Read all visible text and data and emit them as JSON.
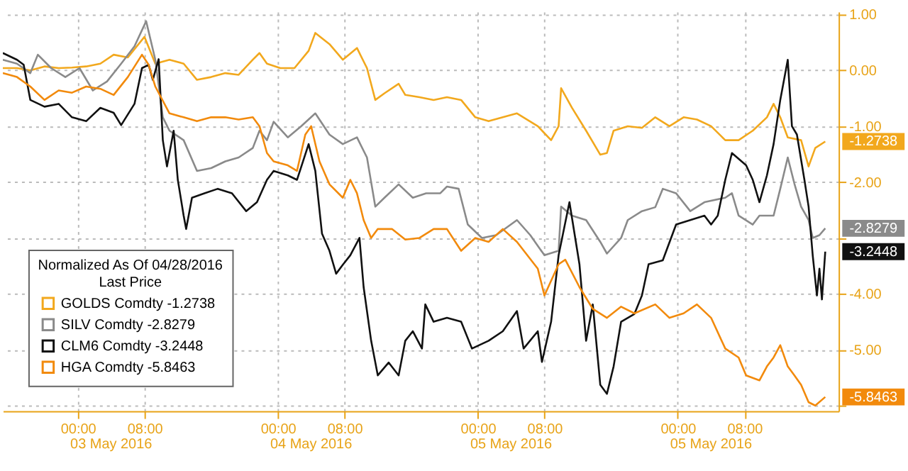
{
  "chart_data": {
    "type": "line",
    "legend_title": "Normalized As Of 04/28/2016\nLast Price",
    "legend": "bottom left",
    "grid": true,
    "line_style": "solid",
    "marker": "none",
    "xlim": [
      "2016-05-02T15:00",
      "2016-05-06T19:18"
    ],
    "xticks": [
      {
        "value": "2016-05-03T00:00",
        "label": "00:00"
      },
      {
        "value": "2016-05-03T08:00",
        "label": "08:00"
      },
      {
        "value": "2016-05-04T00:00",
        "label": "00:00"
      },
      {
        "value": "2016-05-04T08:00",
        "label": "08:00"
      },
      {
        "value": "2016-05-05T00:00",
        "label": "00:00"
      },
      {
        "value": "2016-05-05T08:00",
        "label": "08:00"
      },
      {
        "value": "2016-05-06T00:00",
        "label": "00:00"
      },
      {
        "value": "2016-05-06T08:00",
        "label": "08:00"
      }
    ],
    "ylim": [
      -6.1,
      1.05
    ],
    "yticks": [
      {
        "value": 1,
        "label": "1.00"
      },
      {
        "value": 0,
        "label": "0.00"
      },
      {
        "value": -1,
        "label": "-1.00"
      },
      {
        "value": -2,
        "label": "-2.00"
      },
      {
        "value": -3,
        "label": null
      },
      {
        "value": -4,
        "label": "-4.00"
      },
      {
        "value": -5,
        "label": "-5.00"
      },
      {
        "value": -6,
        "label": null
      }
    ],
    "series": [
      {
        "name": "GOLDS Comdty  -1.2738",
        "color": "#f2a81d",
        "x": [
          "2016-05-02T15:00",
          "2016-05-02T16:42",
          "2016-05-02T18:18",
          "2016-05-02T20:00",
          "2016-05-02T21:42",
          "2016-05-02T23:18",
          "2016-05-03T01:00",
          "2016-05-03T02:42",
          "2016-05-03T04:18",
          "2016-05-03T06:00",
          "2016-05-03T08:00",
          "2016-05-03T09:18",
          "2016-05-03T11:00",
          "2016-05-03T12:42",
          "2016-05-03T14:18",
          "2016-05-03T16:00",
          "2016-05-03T17:42",
          "2016-05-03T19:18",
          "2016-05-03T21:00",
          "2016-05-03T21:48",
          "2016-05-03T22:42",
          "2016-05-04T00:18",
          "2016-05-04T02:00",
          "2016-05-04T03:42",
          "2016-05-04T04:30",
          "2016-05-04T06:12",
          "2016-05-04T07:48",
          "2016-05-04T09:30",
          "2016-05-04T10:42",
          "2016-05-04T11:42",
          "2016-05-04T12:48",
          "2016-05-04T14:30",
          "2016-05-04T15:18",
          "2016-05-04T17:00",
          "2016-05-04T18:42",
          "2016-05-04T20:18",
          "2016-05-04T22:00",
          "2016-05-04T23:42",
          "2016-05-05T01:18",
          "2016-05-05T04:42",
          "2016-05-05T07:12",
          "2016-05-05T08:48",
          "2016-05-05T09:42",
          "2016-05-05T10:00",
          "2016-05-05T11:18",
          "2016-05-05T13:00",
          "2016-05-05T14:42",
          "2016-05-05T15:30",
          "2016-05-05T16:18",
          "2016-05-05T18:00",
          "2016-05-05T19:42",
          "2016-05-05T21:18",
          "2016-05-05T23:00",
          "2016-05-06T00:42",
          "2016-05-06T02:18",
          "2016-05-06T04:00",
          "2016-05-06T05:42",
          "2016-05-06T07:18",
          "2016-05-06T09:00",
          "2016-05-06T10:42",
          "2016-05-06T11:30",
          "2016-05-06T12:18",
          "2016-05-06T13:12",
          "2016-05-06T14:48",
          "2016-05-06T15:42",
          "2016-05-06T16:30",
          "2016-05-06T17:42"
        ],
        "values": [
          0.04,
          0.04,
          0.0,
          0.07,
          0.04,
          0.05,
          0.07,
          0.12,
          0.28,
          0.23,
          0.6,
          0.12,
          0.19,
          0.12,
          -0.17,
          -0.12,
          -0.05,
          -0.08,
          0.19,
          0.31,
          0.12,
          0.04,
          0.04,
          0.35,
          0.67,
          0.47,
          0.19,
          0.4,
          0.04,
          -0.53,
          -0.41,
          -0.24,
          -0.44,
          -0.48,
          -0.53,
          -0.48,
          -0.53,
          -0.84,
          -0.91,
          -0.77,
          -1.0,
          -1.25,
          -1.0,
          -0.32,
          -0.67,
          -1.08,
          -1.51,
          -1.48,
          -1.08,
          -1.0,
          -1.03,
          -0.84,
          -1.0,
          -0.84,
          -0.88,
          -1.0,
          -1.25,
          -1.25,
          -1.08,
          -0.84,
          -0.6,
          -0.84,
          -1.2,
          -1.25,
          -1.72,
          -1.39,
          -1.2738
        ]
      },
      {
        "name": "SILV Comdty  -2.8279",
        "color": "#8a8a8a",
        "x": [
          "2016-05-02T15:00",
          "2016-05-02T16:42",
          "2016-05-02T18:18",
          "2016-05-02T19:12",
          "2016-05-02T20:48",
          "2016-05-02T22:30",
          "2016-05-03T00:12",
          "2016-05-03T01:48",
          "2016-05-03T03:30",
          "2016-05-03T05:12",
          "2016-05-03T06:48",
          "2016-05-03T08:12",
          "2016-05-03T09:18",
          "2016-05-03T10:12",
          "2016-05-03T11:00",
          "2016-05-03T12:42",
          "2016-05-03T14:18",
          "2016-05-03T16:00",
          "2016-05-03T17:42",
          "2016-05-03T19:18",
          "2016-05-03T21:00",
          "2016-05-03T21:48",
          "2016-05-03T22:42",
          "2016-05-03T23:30",
          "2016-05-04T01:12",
          "2016-05-04T02:48",
          "2016-05-04T04:30",
          "2016-05-04T06:12",
          "2016-05-04T07:48",
          "2016-05-04T09:30",
          "2016-05-04T10:42",
          "2016-05-04T11:42",
          "2016-05-04T12:48",
          "2016-05-04T14:30",
          "2016-05-04T16:12",
          "2016-05-04T17:48",
          "2016-05-04T19:30",
          "2016-05-04T20:18",
          "2016-05-04T21:42",
          "2016-05-04T22:48",
          "2016-05-05T00:30",
          "2016-05-05T02:12",
          "2016-05-05T04:42",
          "2016-05-05T06:18",
          "2016-05-05T08:00",
          "2016-05-05T09:42",
          "2016-05-05T10:00",
          "2016-05-05T11:18",
          "2016-05-05T13:00",
          "2016-05-05T14:42",
          "2016-05-05T15:30",
          "2016-05-05T17:12",
          "2016-05-05T18:00",
          "2016-05-05T19:42",
          "2016-05-05T21:18",
          "2016-05-05T22:12",
          "2016-05-05T23:48",
          "2016-05-06T01:30",
          "2016-05-06T03:12",
          "2016-05-06T05:42",
          "2016-05-06T06:30",
          "2016-05-06T07:18",
          "2016-05-06T09:00",
          "2016-05-06T09:48",
          "2016-05-06T11:30",
          "2016-05-06T12:18",
          "2016-05-06T13:12",
          "2016-05-06T14:00",
          "2016-05-06T14:48",
          "2016-05-06T15:42",
          "2016-05-06T16:12",
          "2016-05-06T17:00",
          "2016-05-06T17:42"
        ],
        "values": [
          0.19,
          0.12,
          -0.05,
          0.28,
          0.04,
          -0.12,
          0.04,
          -0.36,
          -0.2,
          0.12,
          0.43,
          0.88,
          0.19,
          -0.84,
          -1.08,
          -1.25,
          -1.8,
          -1.75,
          -1.63,
          -1.56,
          -1.39,
          -1.08,
          -1.25,
          -0.92,
          -1.2,
          -1.0,
          -0.77,
          -1.15,
          -1.32,
          -1.2,
          -1.56,
          -2.44,
          -2.28,
          -2.04,
          -2.28,
          -2.2,
          -2.2,
          -2.08,
          -2.12,
          -2.76,
          -3.0,
          -2.95,
          -2.68,
          -2.95,
          -3.31,
          -3.23,
          -2.44,
          -2.6,
          -2.68,
          -3.07,
          -3.28,
          -3.0,
          -2.68,
          -2.52,
          -2.45,
          -2.12,
          -2.2,
          -2.52,
          -2.36,
          -2.28,
          -2.2,
          -2.6,
          -2.76,
          -2.6,
          -2.6,
          -2.12,
          -1.56,
          -2.03,
          -2.44,
          -2.68,
          -3.0,
          -2.95,
          -2.8279
        ]
      },
      {
        "name": "CLM6 Comdty  -3.2448",
        "color": "#111111",
        "x": [
          "2016-05-02T15:00",
          "2016-05-02T16:42",
          "2016-05-02T17:30",
          "2016-05-02T18:18",
          "2016-05-02T20:00",
          "2016-05-02T21:42",
          "2016-05-02T23:18",
          "2016-05-03T01:00",
          "2016-05-03T02:42",
          "2016-05-03T04:18",
          "2016-05-03T05:12",
          "2016-05-03T06:48",
          "2016-05-03T07:42",
          "2016-05-03T08:30",
          "2016-05-03T09:00",
          "2016-05-03T09:42",
          "2016-05-03T10:12",
          "2016-05-03T10:42",
          "2016-05-03T11:30",
          "2016-05-03T12:00",
          "2016-05-03T12:42",
          "2016-05-03T13:00",
          "2016-05-03T13:42",
          "2016-05-03T15:12",
          "2016-05-03T16:48",
          "2016-05-03T18:30",
          "2016-05-03T20:12",
          "2016-05-03T21:30",
          "2016-05-03T22:42",
          "2016-05-03T23:30",
          "2016-05-04T01:12",
          "2016-05-04T02:18",
          "2016-05-04T03:42",
          "2016-05-04T04:30",
          "2016-05-04T05:18",
          "2016-05-04T06:12",
          "2016-05-04T07:00",
          "2016-05-04T07:48",
          "2016-05-04T08:42",
          "2016-05-04T09:48",
          "2016-05-04T10:18",
          "2016-05-04T11:12",
          "2016-05-04T12:00",
          "2016-05-04T13:18",
          "2016-05-04T14:30",
          "2016-05-04T15:18",
          "2016-05-04T16:12",
          "2016-05-04T17:18",
          "2016-05-04T17:42",
          "2016-05-04T18:42",
          "2016-05-04T20:18",
          "2016-05-04T22:00",
          "2016-05-04T23:18",
          "2016-05-05T01:18",
          "2016-05-05T03:00",
          "2016-05-05T04:42",
          "2016-05-05T05:30",
          "2016-05-05T07:12",
          "2016-05-05T07:42",
          "2016-05-05T08:48",
          "2016-05-05T09:42",
          "2016-05-05T11:00",
          "2016-05-05T12:12",
          "2016-05-05T13:00",
          "2016-05-05T13:48",
          "2016-05-05T14:42",
          "2016-05-05T15:30",
          "2016-05-05T16:18",
          "2016-05-05T17:12",
          "2016-05-05T18:00",
          "2016-05-05T18:48",
          "2016-05-05T19:42",
          "2016-05-05T20:30",
          "2016-05-05T22:12",
          "2016-05-05T23:48",
          "2016-05-06T01:30",
          "2016-05-06T03:12",
          "2016-05-06T04:00",
          "2016-05-06T04:48",
          "2016-05-06T05:42",
          "2016-05-06T06:30",
          "2016-05-06T08:12",
          "2016-05-06T09:00",
          "2016-05-06T09:48",
          "2016-05-06T10:42",
          "2016-05-06T11:30",
          "2016-05-06T12:18",
          "2016-05-06T13:12",
          "2016-05-06T13:42",
          "2016-05-06T14:18",
          "2016-05-06T15:12",
          "2016-05-06T15:42",
          "2016-05-06T16:12",
          "2016-05-06T16:42",
          "2016-05-06T17:00",
          "2016-05-06T17:18",
          "2016-05-06T17:42"
        ],
        "values": [
          0.31,
          0.19,
          0.1,
          -0.53,
          -0.65,
          -0.6,
          -0.84,
          -0.91,
          -0.67,
          -0.76,
          -0.98,
          -0.6,
          0.04,
          0.1,
          -0.17,
          0.2,
          -1.25,
          -1.72,
          -1.08,
          -1.96,
          -2.6,
          -2.84,
          -2.28,
          -2.2,
          -2.12,
          -2.2,
          -2.52,
          -2.36,
          -1.96,
          -1.8,
          -1.88,
          -1.96,
          -1.32,
          -1.8,
          -2.92,
          -3.23,
          -3.64,
          -3.48,
          -3.31,
          -3.0,
          -3.88,
          -4.84,
          -5.46,
          -5.23,
          -5.46,
          -4.84,
          -4.67,
          -4.98,
          -4.19,
          -4.5,
          -4.43,
          -4.5,
          -4.98,
          -4.84,
          -4.67,
          -4.31,
          -4.98,
          -4.67,
          -5.22,
          -4.5,
          -3.31,
          -2.36,
          -3.47,
          -4.84,
          -4.19,
          -5.63,
          -5.79,
          -5.3,
          -4.5,
          -4.43,
          -4.36,
          -4.03,
          -3.47,
          -3.4,
          -2.76,
          -2.68,
          -2.6,
          -2.76,
          -2.6,
          -1.96,
          -1.48,
          -1.7,
          -1.96,
          -2.36,
          -1.88,
          -1.32,
          -0.53,
          0.19,
          -1.0,
          -1.15,
          -1.96,
          -2.44,
          -3.32,
          -4.03,
          -3.55,
          -4.1,
          -3.2448
        ]
      },
      {
        "name": "HGA Comdty  -5.8463",
        "color": "#f28a0c",
        "x": [
          "2016-05-02T15:00",
          "2016-05-02T16:42",
          "2016-05-02T18:18",
          "2016-05-02T20:00",
          "2016-05-02T21:42",
          "2016-05-02T23:18",
          "2016-05-03T01:00",
          "2016-05-03T02:42",
          "2016-05-03T04:18",
          "2016-05-03T06:00",
          "2016-05-03T07:42",
          "2016-05-03T08:30",
          "2016-05-03T09:18",
          "2016-05-03T11:00",
          "2016-05-03T12:42",
          "2016-05-03T14:18",
          "2016-05-03T16:00",
          "2016-05-03T17:42",
          "2016-05-03T19:18",
          "2016-05-03T21:00",
          "2016-05-03T21:48",
          "2016-05-03T22:42",
          "2016-05-03T23:30",
          "2016-05-04T01:12",
          "2016-05-04T02:18",
          "2016-05-04T03:18",
          "2016-05-04T04:00",
          "2016-05-04T05:00",
          "2016-05-04T06:12",
          "2016-05-04T07:48",
          "2016-05-04T08:42",
          "2016-05-04T09:30",
          "2016-05-04T10:18",
          "2016-05-04T11:12",
          "2016-05-04T12:00",
          "2016-05-04T13:42",
          "2016-05-04T15:18",
          "2016-05-04T17:00",
          "2016-05-04T18:42",
          "2016-05-04T20:18",
          "2016-05-04T22:00",
          "2016-05-04T23:42",
          "2016-05-05T01:18",
          "2016-05-05T03:00",
          "2016-05-05T04:42",
          "2016-05-05T07:12",
          "2016-05-05T08:00",
          "2016-05-05T09:42",
          "2016-05-05T10:30",
          "2016-05-05T12:12",
          "2016-05-05T13:48",
          "2016-05-05T15:30",
          "2016-05-05T17:12",
          "2016-05-05T18:48",
          "2016-05-05T21:18",
          "2016-05-05T23:00",
          "2016-05-06T00:42",
          "2016-05-06T02:18",
          "2016-05-06T04:00",
          "2016-05-06T05:42",
          "2016-05-06T07:18",
          "2016-05-06T08:12",
          "2016-05-06T09:48",
          "2016-05-06T10:42",
          "2016-05-06T11:30",
          "2016-05-06T12:18",
          "2016-05-06T13:12",
          "2016-05-06T14:00",
          "2016-05-06T14:48",
          "2016-05-06T15:42",
          "2016-05-06T16:30",
          "2016-05-06T17:42"
        ],
        "values": [
          -0.05,
          -0.12,
          -0.29,
          -0.53,
          -0.36,
          -0.4,
          -0.29,
          -0.33,
          -0.44,
          -0.12,
          0.28,
          0.1,
          -0.29,
          -0.77,
          -0.84,
          -0.91,
          -0.84,
          -0.84,
          -0.88,
          -0.84,
          -1.0,
          -1.48,
          -1.63,
          -1.7,
          -1.8,
          -1.15,
          -1.0,
          -1.63,
          -2.04,
          -2.28,
          -1.96,
          -2.2,
          -2.68,
          -3.0,
          -2.84,
          -2.84,
          -3.03,
          -3.0,
          -2.84,
          -2.84,
          -3.23,
          -3.0,
          -3.07,
          -2.84,
          -3.07,
          -3.55,
          -4.03,
          -3.47,
          -3.39,
          -3.88,
          -4.27,
          -4.43,
          -4.23,
          -4.35,
          -4.19,
          -4.43,
          -4.35,
          -4.19,
          -4.43,
          -4.98,
          -5.14,
          -5.46,
          -5.55,
          -5.3,
          -5.14,
          -4.92,
          -5.3,
          -5.46,
          -5.63,
          -5.94,
          -6.0,
          -5.8463
        ]
      }
    ],
    "annotations": [
      "03 May 2016",
      "04 May 2016",
      "05 May 2016",
      "05 May 2016",
      {
        "text": "-1.2738",
        "x": "2016-05-06T17:42",
        "y": -1.2738
      },
      {
        "text": "-2.8279",
        "x": "2016-05-06T17:42",
        "y": -2.8279
      },
      {
        "text": "-3.2448",
        "x": "2016-05-06T17:42",
        "y": -3.2448
      },
      {
        "text": "-5.8463",
        "x": "2016-05-06T17:42",
        "y": -5.8463
      }
    ]
  }
}
